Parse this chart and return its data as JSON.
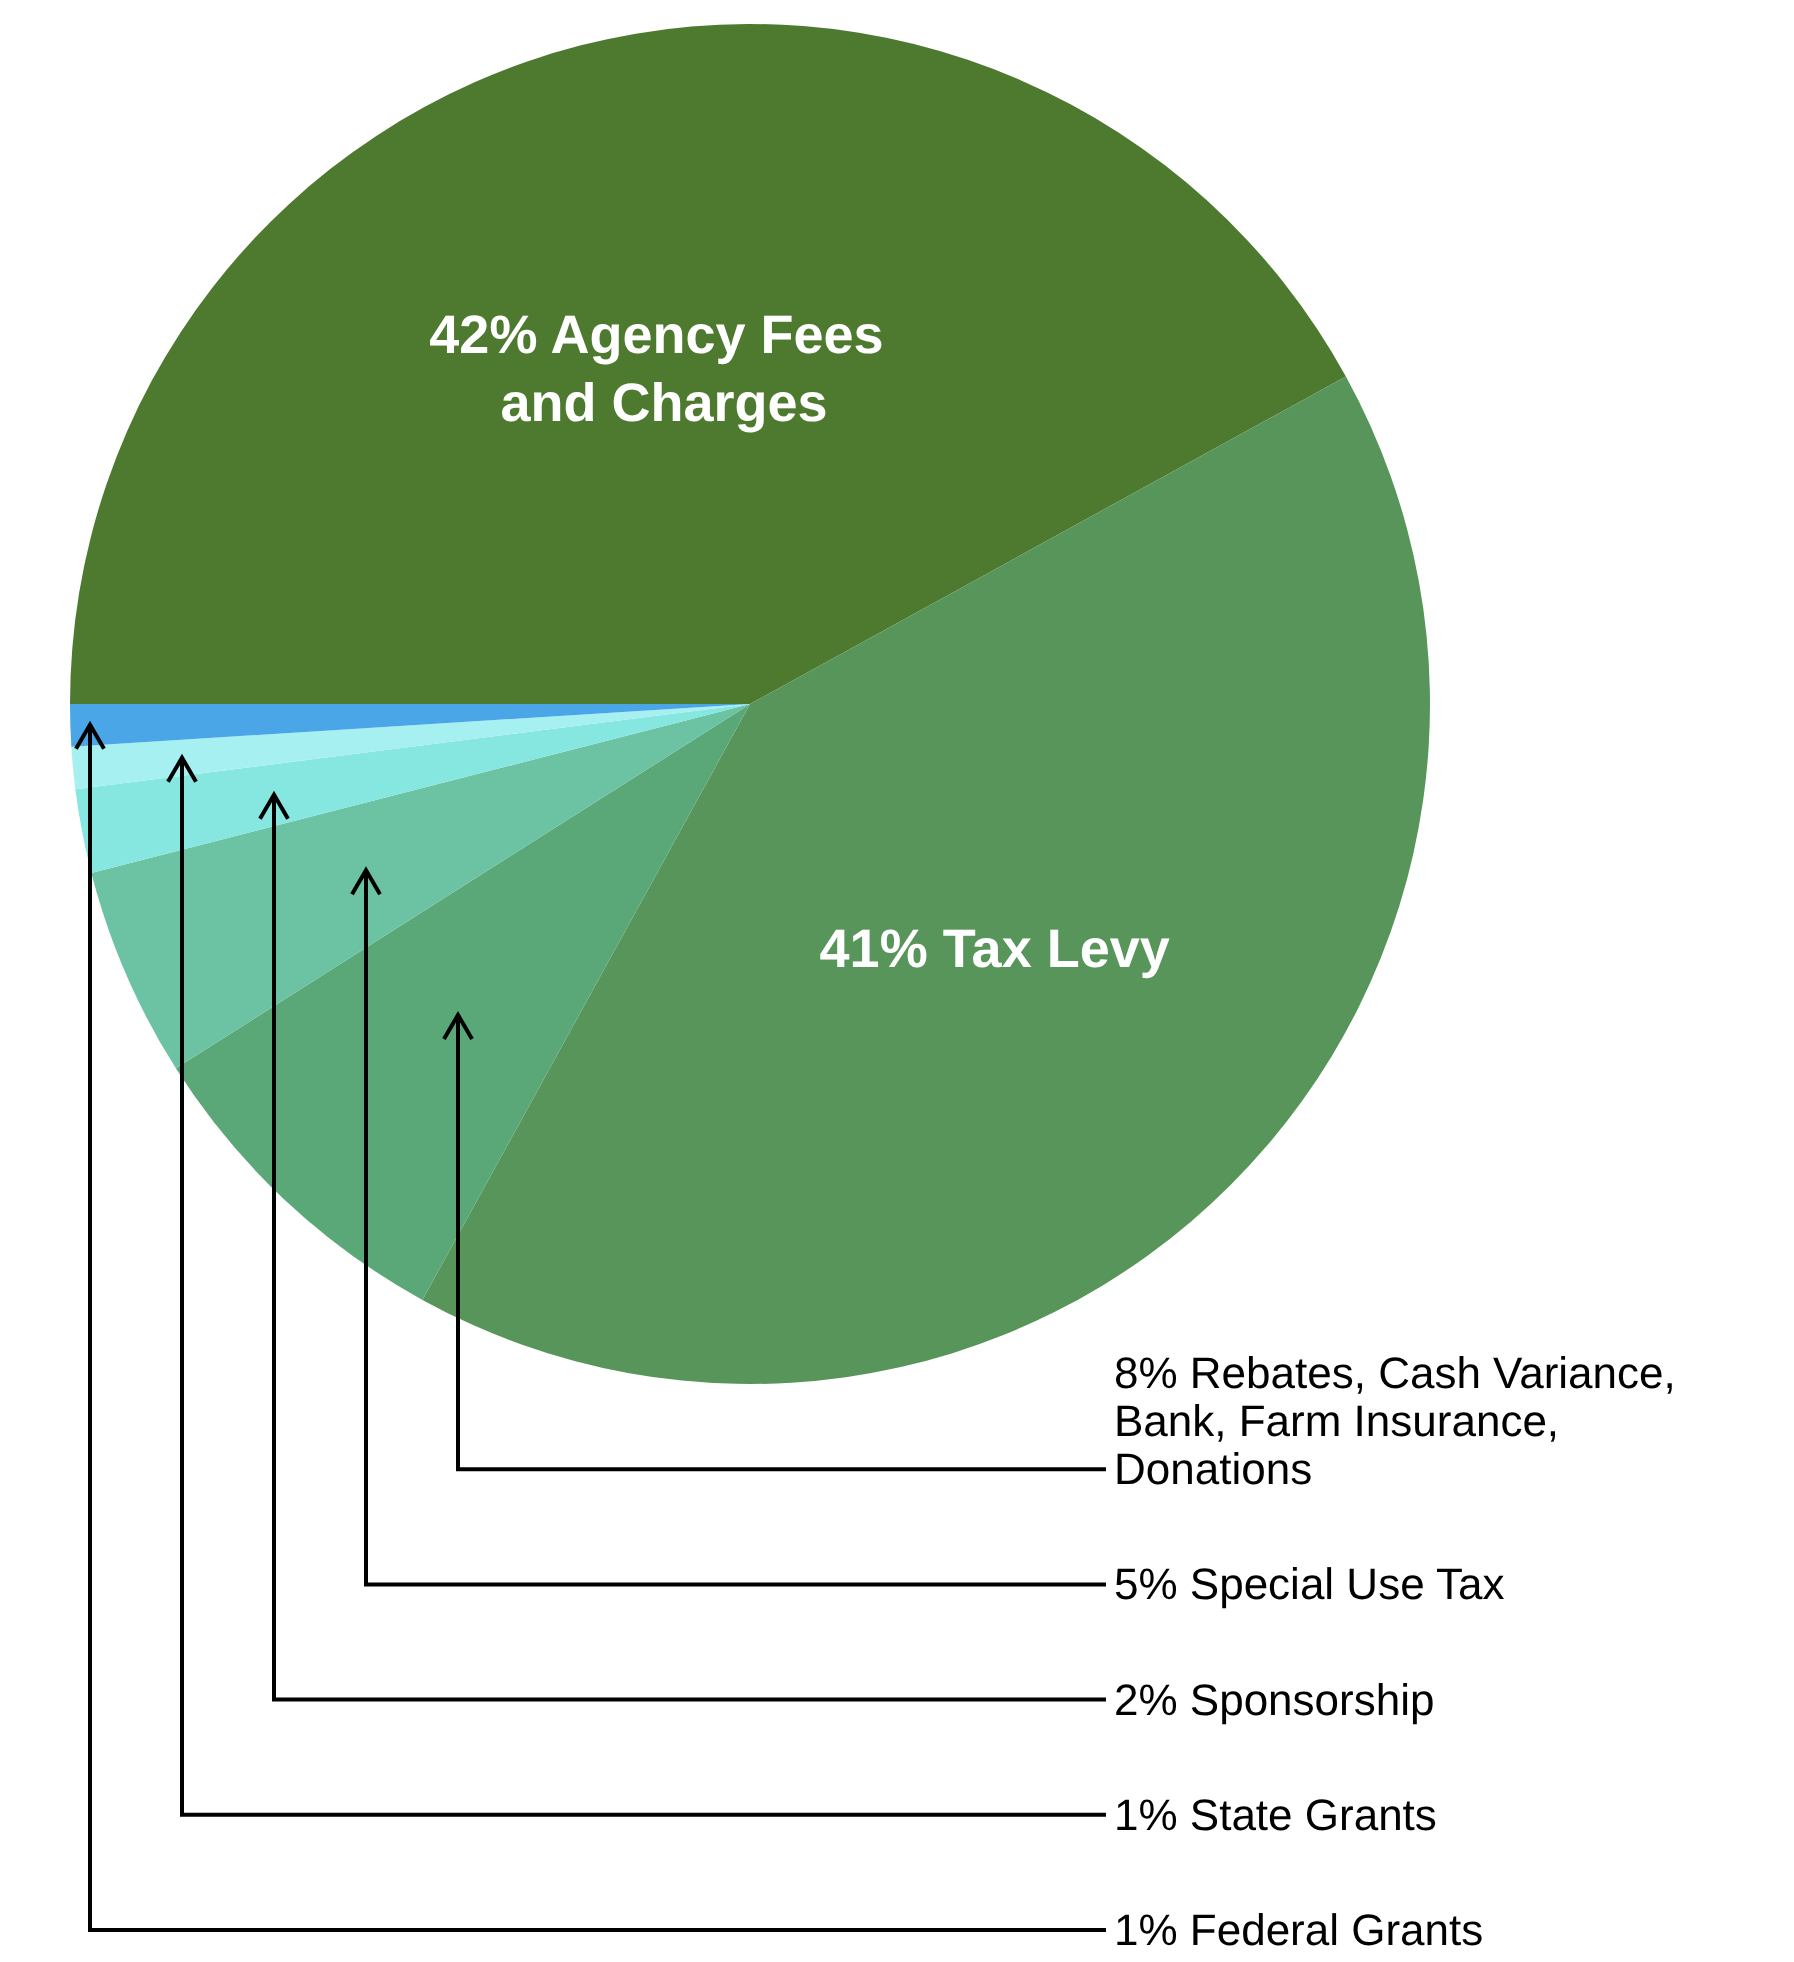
{
  "chart_data": {
    "type": "pie",
    "categories": [
      "Agency Fees and Charges",
      "Tax Levy",
      "Rebates, Cash Variance, Bank, Farm Insurance, Donations",
      "Special Use Tax",
      "Sponsorship",
      "State Grants",
      "Federal Grants"
    ],
    "values": [
      42,
      41,
      8,
      5,
      2,
      1,
      1
    ],
    "value_labels": [
      "42%",
      "41%",
      "8%",
      "5%",
      "2%",
      "1%",
      "1%"
    ],
    "colors": [
      "#4e7a2f",
      "#58955a",
      "#5aa878",
      "#6cc3a4",
      "#86e6e0",
      "#a6f0f2",
      "#4aa6e6"
    ],
    "legend": false
  }
}
